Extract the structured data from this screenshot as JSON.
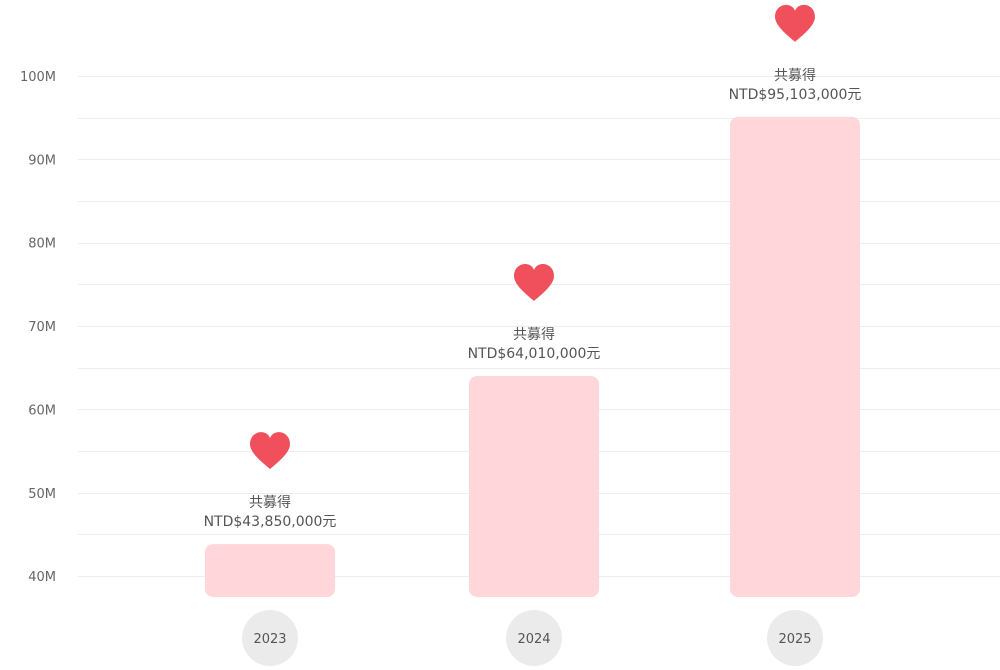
{
  "chart_data": {
    "type": "bar",
    "categories": [
      "2023",
      "2024",
      "2025"
    ],
    "values": [
      43850000,
      64010000,
      95103000
    ],
    "ylim": [
      37500000,
      103000000
    ],
    "yticks": [
      40000000,
      50000000,
      60000000,
      70000000,
      80000000,
      90000000,
      100000000
    ],
    "ytick_labels": [
      "40M",
      "50M",
      "60M",
      "70M",
      "80M",
      "90M",
      "100M"
    ],
    "data_label_prefix": "共募得",
    "data_labels": [
      "NTD$43,850,000元",
      "NTD$64,010,000元",
      "NTD$95,103,000元"
    ],
    "grid": true,
    "legend": "none"
  },
  "colors": {
    "bar": "#ffd6d9",
    "heart": "#f0505c",
    "year_circle": "#ebebeb",
    "grid": "#eeeeee"
  },
  "icons": {
    "marker": "heart-icon"
  }
}
